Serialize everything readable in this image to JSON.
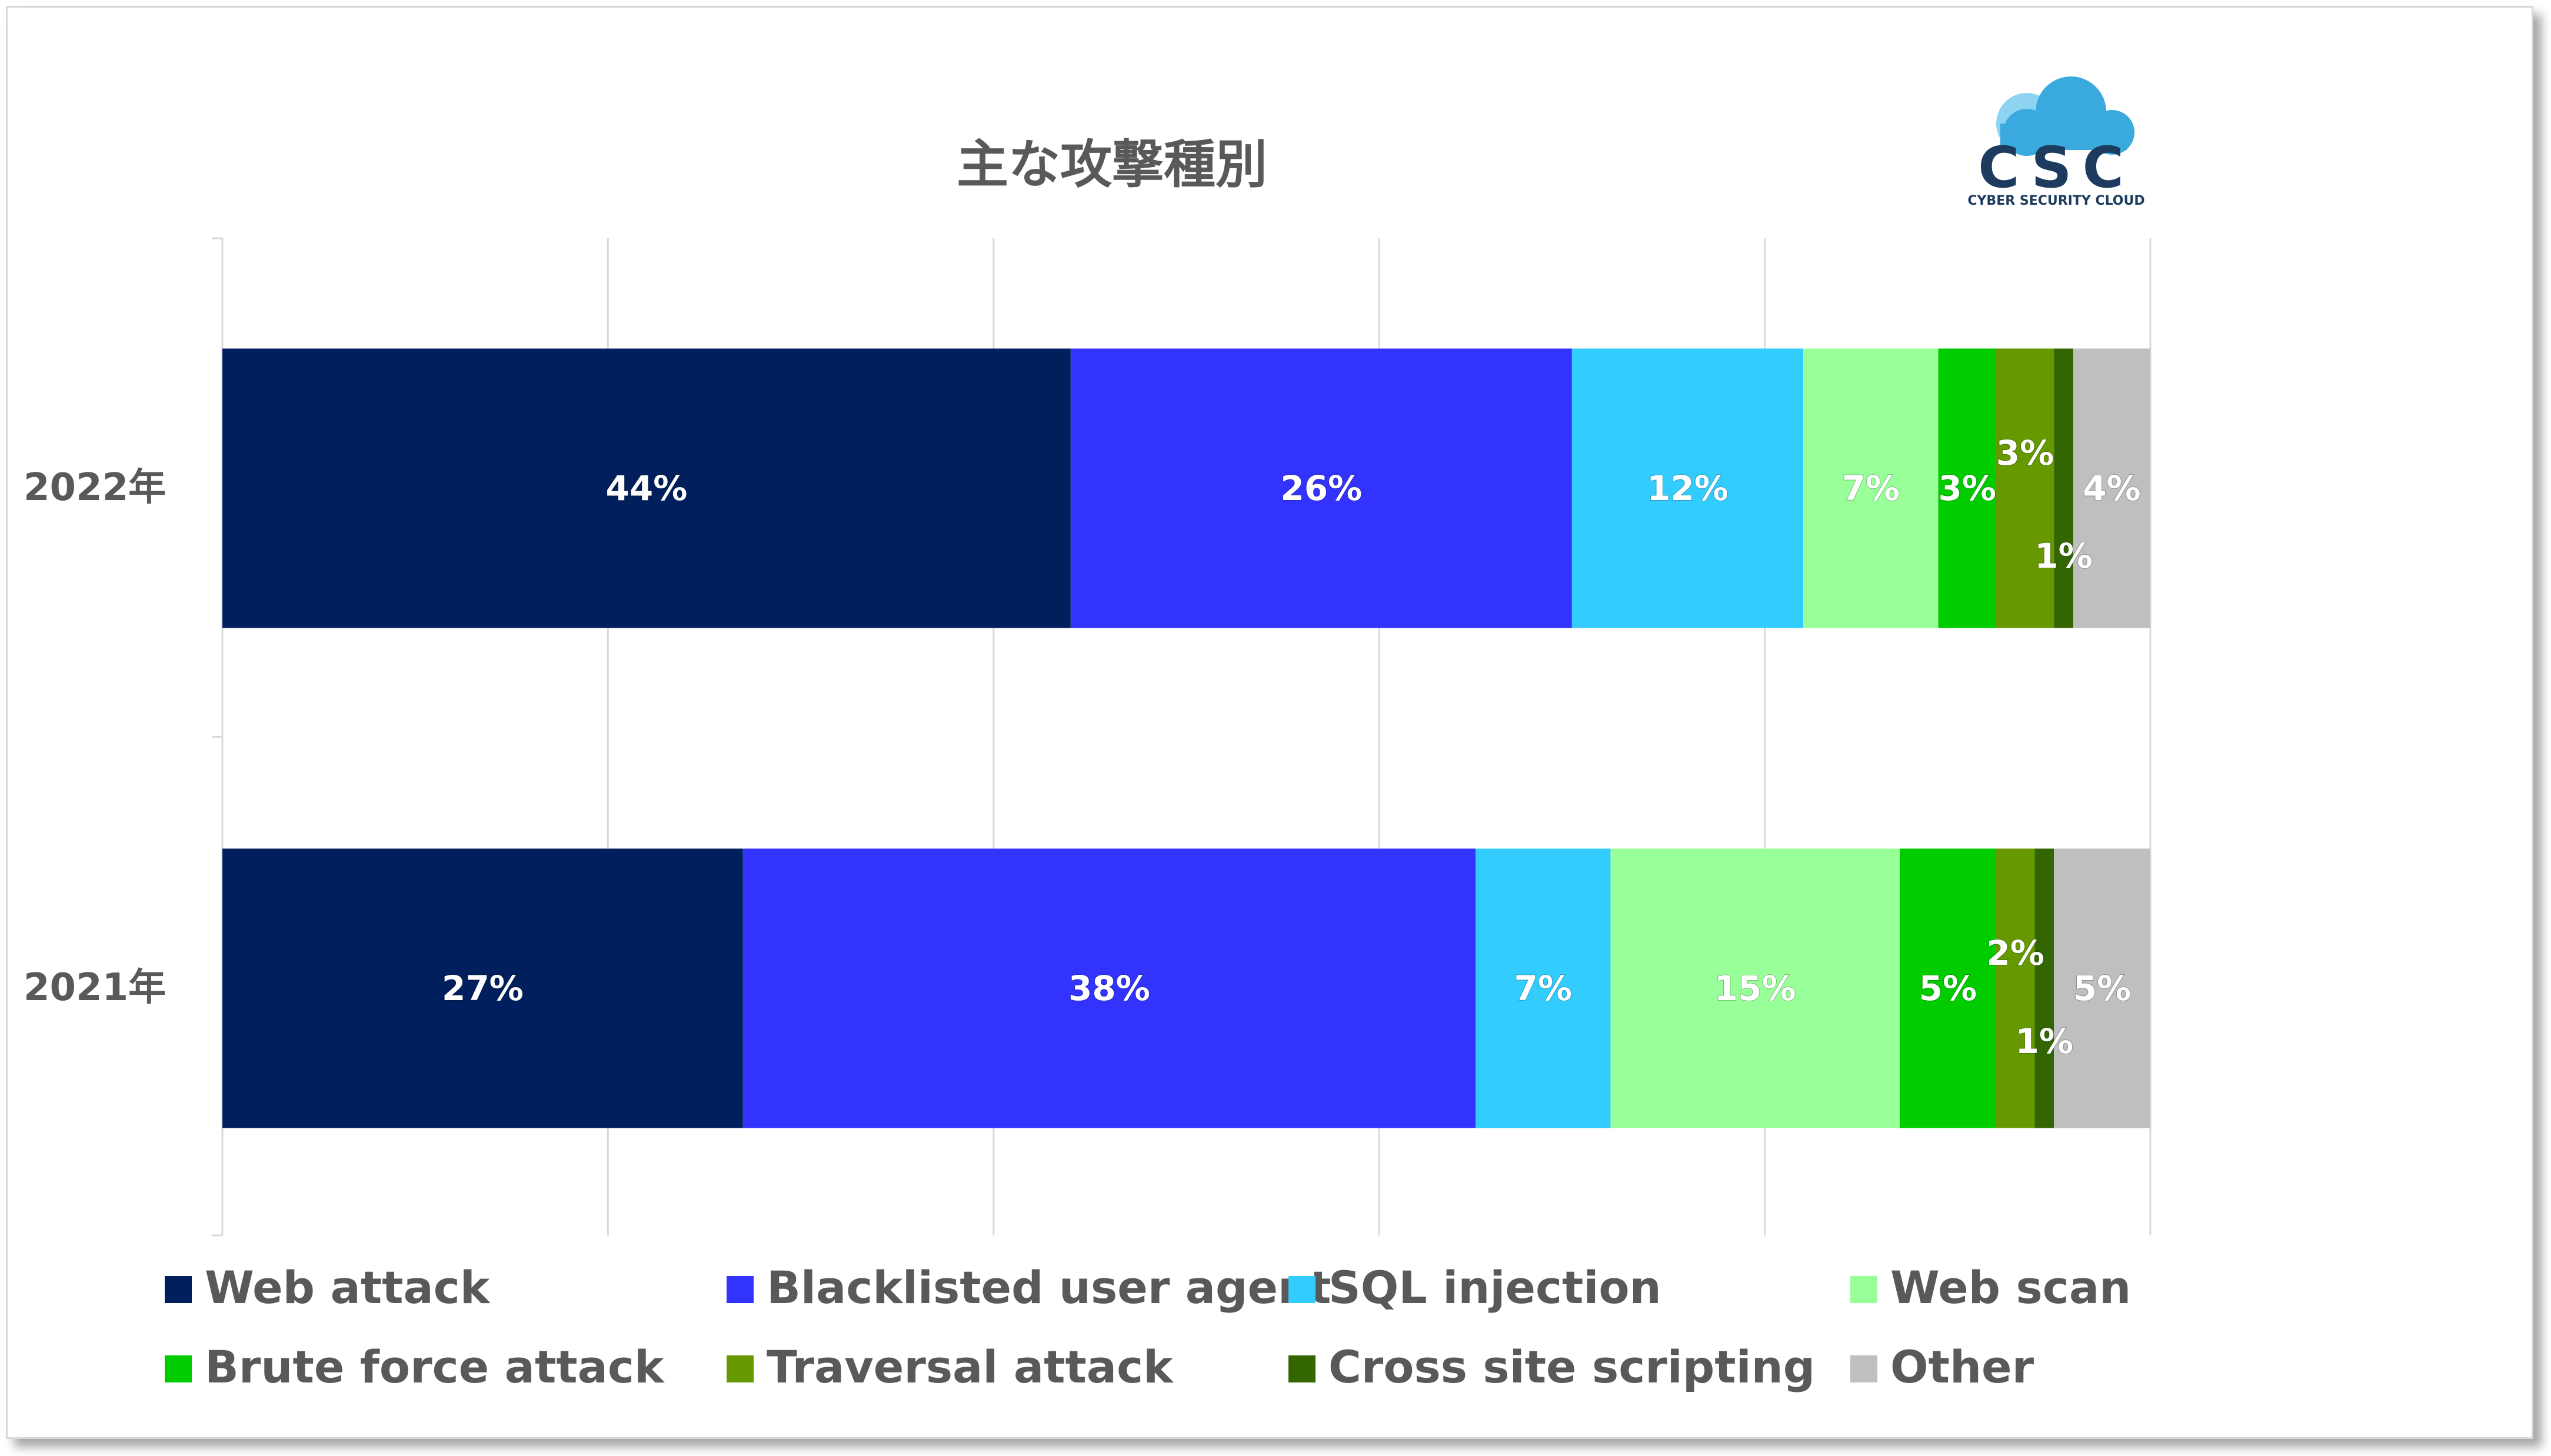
{
  "chart_data": {
    "type": "bar",
    "orientation": "horizontal",
    "stacked": true,
    "title": "主な攻撃種別",
    "categories": [
      "2022年",
      "2021年"
    ],
    "xlim": [
      0,
      100
    ],
    "grid": true,
    "legend_position": "bottom",
    "series": [
      {
        "name": "Web attack",
        "color": "#001f5c",
        "values": [
          44,
          27
        ],
        "labels": [
          "44%",
          "27%"
        ]
      },
      {
        "name": "Blacklisted user agent",
        "color": "#3333ff",
        "values": [
          26,
          38
        ],
        "labels": [
          "26%",
          "38%"
        ]
      },
      {
        "name": "SQL injection",
        "color": "#33ccff",
        "values": [
          12,
          7
        ],
        "labels": [
          "12%",
          "7%"
        ]
      },
      {
        "name": "Web scan",
        "color": "#99ff99",
        "values": [
          7,
          15
        ],
        "labels": [
          "7%",
          "15%"
        ]
      },
      {
        "name": "Brute force attack",
        "color": "#00cc00",
        "values": [
          3,
          5
        ],
        "labels": [
          "3%",
          "5%"
        ]
      },
      {
        "name": "Traversal attack",
        "color": "#669900",
        "values": [
          3,
          2
        ],
        "labels": [
          "3%",
          "2%"
        ]
      },
      {
        "name": "Cross site scripting",
        "color": "#336600",
        "values": [
          1,
          1
        ],
        "labels": [
          "1%",
          "1%"
        ]
      },
      {
        "name": "Other",
        "color": "#bfbfbf",
        "values": [
          4,
          5
        ],
        "labels": [
          "4%",
          "5%"
        ]
      }
    ]
  },
  "logo": {
    "abbr": "CSC",
    "name": "CYBER SECURITY CLOUD",
    "icon": "cloud-icon",
    "colors": {
      "cloud": "#3aa9dd",
      "text": "#1c3b5e"
    }
  }
}
